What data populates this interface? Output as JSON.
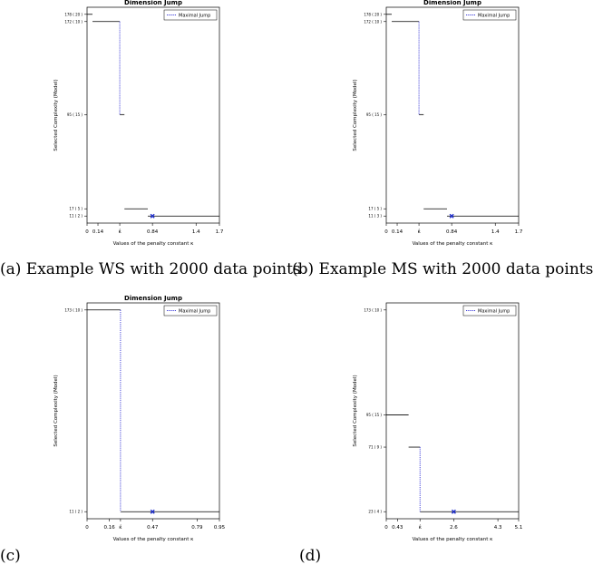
{
  "captions": [
    "(a) Example WS with 2000 data points",
    "(b) Example MS with 2000 data points",
    "(c)",
    "(d)"
  ],
  "chart_data": [
    {
      "type": "line",
      "title": "Dimension Jump",
      "xlabel": "Values of the penalty constant κ",
      "ylabel": "Selected Complexity (Model)",
      "legend": {
        "label": "Maximal Jump",
        "position": "top-right"
      },
      "xlim": [
        0,
        1.7
      ],
      "x_ticks": [
        0,
        0.14,
        0.42,
        0.84,
        1.4,
        1.7
      ],
      "x_tick_labels": [
        "0",
        "0.14",
        "κ̂",
        "0.84",
        "1.4",
        "1.7"
      ],
      "ylim": [
        11,
        178
      ],
      "y_ticks": [
        11,
        17,
        95,
        172,
        178
      ],
      "y_tick_labels": [
        "11 ( 2 )",
        "17 ( 5 )",
        "95 ( 15 )",
        "172 ( 10 )",
        "178 ( 20 )"
      ],
      "steps": [
        {
          "x": [
            0,
            0.07
          ],
          "y": 178
        },
        {
          "x": [
            0.07,
            0.42
          ],
          "y": 172
        },
        {
          "x": [
            0.42,
            0.48
          ],
          "y": 95
        },
        {
          "x": [
            0.48,
            0.78
          ],
          "y": 17
        },
        {
          "x": [
            0.78,
            1.7
          ],
          "y": 11
        }
      ],
      "maximal_jump": {
        "x": 0.42,
        "y": [
          172,
          95
        ]
      },
      "kappa_opt": 0.84,
      "marker": {
        "x": 0.84,
        "y": 11
      },
      "colors": {
        "jump": "#3b3bd8",
        "marker": "#1f2fd0",
        "line": "#000000"
      }
    },
    {
      "type": "line",
      "title": "Dimension Jump",
      "xlabel": "Values of the penalty constant κ",
      "ylabel": "Selected Complexity (Model)",
      "legend": {
        "label": "Maximal Jump",
        "position": "top-right"
      },
      "xlim": [
        0,
        1.7
      ],
      "x_ticks": [
        0,
        0.14,
        0.42,
        0.84,
        1.4,
        1.7
      ],
      "x_tick_labels": [
        "0",
        "0.14",
        "κ̂",
        "0.84",
        "1.4",
        "1.7"
      ],
      "ylim": [
        11,
        178
      ],
      "y_ticks": [
        11,
        17,
        95,
        172,
        178
      ],
      "y_tick_labels": [
        "11 ( 3 )",
        "17 ( 5 )",
        "95 ( 15 )",
        "172 ( 10 )",
        "178 ( 20 )"
      ],
      "steps": [
        {
          "x": [
            0,
            0.07
          ],
          "y": 178
        },
        {
          "x": [
            0.07,
            0.42
          ],
          "y": 172
        },
        {
          "x": [
            0.42,
            0.48
          ],
          "y": 95
        },
        {
          "x": [
            0.48,
            0.78
          ],
          "y": 17
        },
        {
          "x": [
            0.78,
            1.7
          ],
          "y": 11
        }
      ],
      "maximal_jump": {
        "x": 0.42,
        "y": [
          172,
          95
        ]
      },
      "kappa_opt": 0.84,
      "marker": {
        "x": 0.84,
        "y": 11
      },
      "colors": {
        "jump": "#3b3bd8",
        "marker": "#1f2fd0",
        "line": "#000000"
      }
    },
    {
      "type": "line",
      "title": "Dimension Jump",
      "xlabel": "Values of the penalty constant κ",
      "ylabel": "Selected Complexity (Model)",
      "legend": {
        "label": "Maximal Jump",
        "position": "top-right"
      },
      "xlim": [
        0,
        0.95
      ],
      "x_ticks": [
        0,
        0.16,
        0.24,
        0.47,
        0.79,
        0.95
      ],
      "x_tick_labels": [
        "0",
        "0.16",
        "κ̂",
        "0.47",
        "0.79",
        "0.95"
      ],
      "ylim": [
        11,
        173
      ],
      "y_ticks": [
        11,
        173
      ],
      "y_tick_labels": [
        "11 ( 2 )",
        "173 ( 10 )"
      ],
      "steps": [
        {
          "x": [
            0,
            0.24
          ],
          "y": 173
        },
        {
          "x": [
            0.24,
            0.95
          ],
          "y": 11
        }
      ],
      "maximal_jump": {
        "x": 0.24,
        "y": [
          173,
          11
        ]
      },
      "kappa_opt": 0.47,
      "marker": {
        "x": 0.47,
        "y": 11
      },
      "colors": {
        "jump": "#3b3bd8",
        "marker": "#1f2fd0",
        "line": "#000000"
      }
    },
    {
      "type": "line",
      "title": "",
      "xlabel": "Values of the penalty constant κ",
      "ylabel": "Selected Complexity (Model)",
      "legend": {
        "label": "Maximal Jump",
        "position": "top-right"
      },
      "xlim": [
        0,
        5.1
      ],
      "x_ticks": [
        0,
        0.43,
        1.3,
        2.6,
        4.3,
        5.1
      ],
      "x_tick_labels": [
        "0",
        "0.43",
        "κ̂",
        "2.6",
        "4.3",
        "5.1"
      ],
      "ylim": [
        23,
        173
      ],
      "y_ticks": [
        23,
        71,
        95,
        173
      ],
      "y_tick_labels": [
        "23 ( 4 )",
        "71 ( 9 )",
        "95 ( 15 )",
        "173 ( 10 )"
      ],
      "steps": [
        {
          "x": [
            0,
            0.86
          ],
          "y": 95
        },
        {
          "x": [
            0.86,
            1.3
          ],
          "y": 71
        },
        {
          "x": [
            1.3,
            5.1
          ],
          "y": 23
        }
      ],
      "maximal_jump": {
        "x": 1.3,
        "y": [
          71,
          23
        ]
      },
      "kappa_opt": 2.6,
      "marker": {
        "x": 2.6,
        "y": 23
      },
      "colors": {
        "jump": "#3b3bd8",
        "marker": "#1f2fd0",
        "line": "#000000"
      }
    }
  ]
}
